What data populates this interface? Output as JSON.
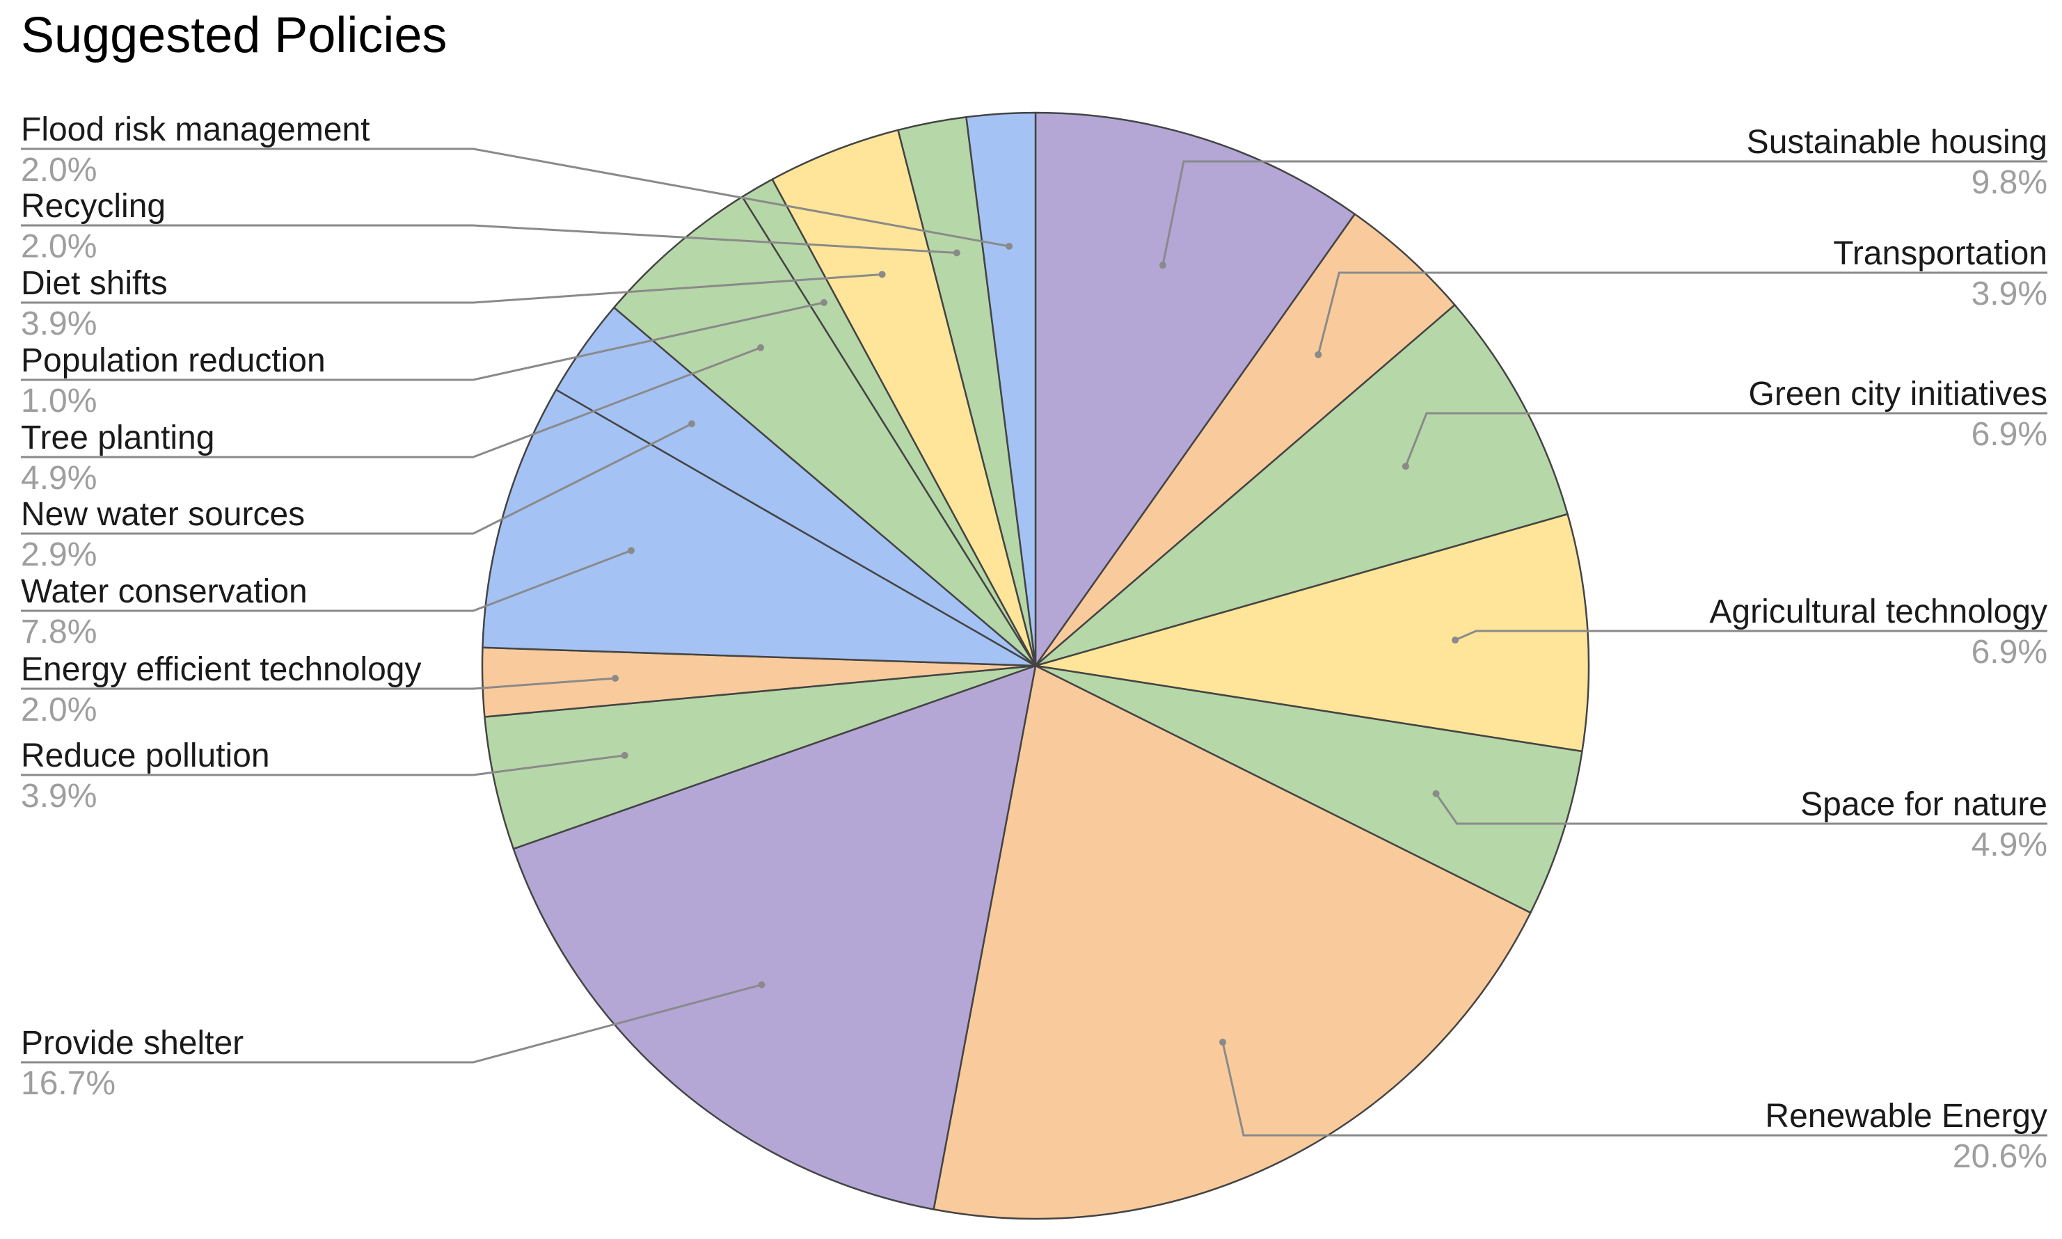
{
  "chart_data": {
    "type": "pie",
    "title": "Suggested Policies",
    "start_angle_deg": 0,
    "direction": "clockwise",
    "legend": "labels",
    "slices": [
      {
        "label": "Sustainable housing",
        "pct_label": "9.8%",
        "value": 9.8,
        "color": "#b4a7d6"
      },
      {
        "label": "Transportation",
        "pct_label": "3.9%",
        "value": 3.9,
        "color": "#f9cb9c"
      },
      {
        "label": "Green city initiatives",
        "pct_label": "6.9%",
        "value": 6.9,
        "color": "#b6d7a8"
      },
      {
        "label": "Agricultural technology",
        "pct_label": "6.9%",
        "value": 6.9,
        "color": "#ffe599"
      },
      {
        "label": "Space for nature",
        "pct_label": "4.9%",
        "value": 4.9,
        "color": "#b6d7a8"
      },
      {
        "label": "Renewable Energy",
        "pct_label": "20.6%",
        "value": 20.6,
        "color": "#f9cb9c"
      },
      {
        "label": "Provide shelter",
        "pct_label": "16.7%",
        "value": 16.7,
        "color": "#b4a7d6"
      },
      {
        "label": "Reduce pollution",
        "pct_label": "3.9%",
        "value": 3.9,
        "color": "#b6d7a8"
      },
      {
        "label": "Energy efficient technology",
        "pct_label": "2.0%",
        "value": 2.0,
        "color": "#f9cb9c"
      },
      {
        "label": "Water conservation",
        "pct_label": "7.8%",
        "value": 7.8,
        "color": "#a4c2f4"
      },
      {
        "label": "New water sources",
        "pct_label": "2.9%",
        "value": 2.9,
        "color": "#a4c2f4"
      },
      {
        "label": "Tree planting",
        "pct_label": "4.9%",
        "value": 4.9,
        "color": "#b6d7a8"
      },
      {
        "label": "Population reduction",
        "pct_label": "1.0%",
        "value": 1.0,
        "color": "#b6d7a8"
      },
      {
        "label": "Diet shifts",
        "pct_label": "3.9%",
        "value": 3.9,
        "color": "#ffe599"
      },
      {
        "label": "Recycling",
        "pct_label": "2.0%",
        "value": 2.0,
        "color": "#b6d7a8"
      },
      {
        "label": "Flood risk management",
        "pct_label": "2.0%",
        "value": 2.0,
        "color": "#a4c2f4"
      }
    ]
  }
}
